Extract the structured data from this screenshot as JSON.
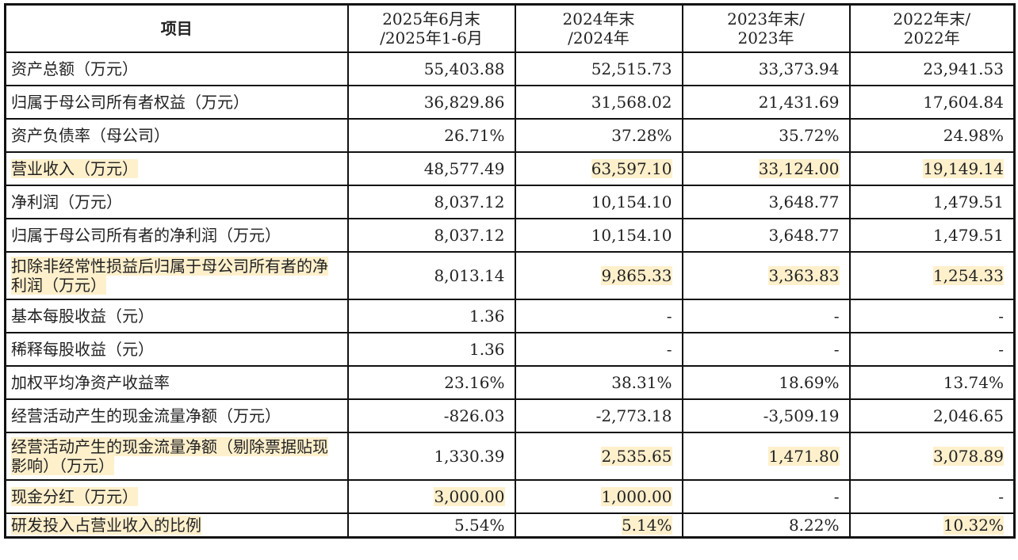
{
  "highlight_color": "#fff0cc",
  "headers": [
    "项目",
    "2025年6月末\n/2025年1-6月",
    "2024年末\n/2024年",
    "2023年末/\n2023年",
    "2022年末/\n2022年"
  ],
  "rows": [
    {
      "label": "资产总额（万元）",
      "values": [
        "55,403.88",
        "52,515.73",
        "33,373.94",
        "23,941.53"
      ],
      "label_highlighted": false,
      "highlighted": [
        false,
        false,
        false,
        false
      ]
    },
    {
      "label": "归属于母公司所有者权益（万元）",
      "values": [
        "36,829.86",
        "31,568.02",
        "21,431.69",
        "17,604.84"
      ],
      "label_highlighted": false,
      "highlighted": [
        false,
        false,
        false,
        false
      ]
    },
    {
      "label": "资产负债率（母公司）",
      "values": [
        "26.71%",
        "37.28%",
        "35.72%",
        "24.98%"
      ],
      "label_highlighted": false,
      "highlighted": [
        false,
        false,
        false,
        false
      ]
    },
    {
      "label": "营业收入（万元）",
      "values": [
        "48,577.49",
        "63,597.10",
        "33,124.00",
        "19,149.14"
      ],
      "label_highlighted": true,
      "highlighted": [
        false,
        true,
        true,
        true
      ]
    },
    {
      "label": "净利润（万元）",
      "values": [
        "8,037.12",
        "10,154.10",
        "3,648.77",
        "1,479.51"
      ],
      "label_highlighted": false,
      "highlighted": [
        false,
        false,
        false,
        false
      ]
    },
    {
      "label": "归属于母公司所有者的净利润（万元）",
      "values": [
        "8,037.12",
        "10,154.10",
        "3,648.77",
        "1,479.51"
      ],
      "label_highlighted": false,
      "highlighted": [
        false,
        false,
        false,
        false
      ]
    },
    {
      "label": "扣除非经常性损益后归属于母公司所有者的净利润（万元）",
      "values": [
        "8,013.14",
        "9,865.33",
        "3,363.83",
        "1,254.33"
      ],
      "label_highlighted": true,
      "highlighted": [
        false,
        true,
        true,
        true
      ]
    },
    {
      "label": "基本每股收益（元）",
      "values": [
        "1.36",
        "-",
        "-",
        "-"
      ],
      "label_highlighted": false,
      "highlighted": [
        false,
        false,
        false,
        false
      ]
    },
    {
      "label": "稀释每股收益（元）",
      "values": [
        "1.36",
        "-",
        "-",
        "-"
      ],
      "label_highlighted": false,
      "highlighted": [
        false,
        false,
        false,
        false
      ]
    },
    {
      "label": "加权平均净资产收益率",
      "values": [
        "23.16%",
        "38.31%",
        "18.69%",
        "13.74%"
      ],
      "label_highlighted": false,
      "highlighted": [
        false,
        false,
        false,
        false
      ]
    },
    {
      "label": "经营活动产生的现金流量净额（万元）",
      "values": [
        "-826.03",
        "-2,773.18",
        "-3,509.19",
        "2,046.65"
      ],
      "label_highlighted": false,
      "highlighted": [
        false,
        false,
        false,
        false
      ]
    },
    {
      "label": "经营活动产生的现金流量净额（剔除票据贴现影响）（万元）",
      "values": [
        "1,330.39",
        "2,535.65",
        "1,471.80",
        "3,078.89"
      ],
      "label_highlighted": true,
      "highlighted": [
        false,
        true,
        true,
        true
      ]
    },
    {
      "label": "现金分红（万元）",
      "values": [
        "3,000.00",
        "1,000.00",
        "-",
        "-"
      ],
      "label_highlighted": true,
      "highlighted": [
        true,
        true,
        false,
        false
      ]
    },
    {
      "label": "研发投入占营业收入的比例",
      "values": [
        "5.54%",
        "5.14%",
        "8.22%",
        "10.32%"
      ],
      "label_highlighted": true,
      "highlighted": [
        false,
        true,
        false,
        true
      ]
    }
  ]
}
